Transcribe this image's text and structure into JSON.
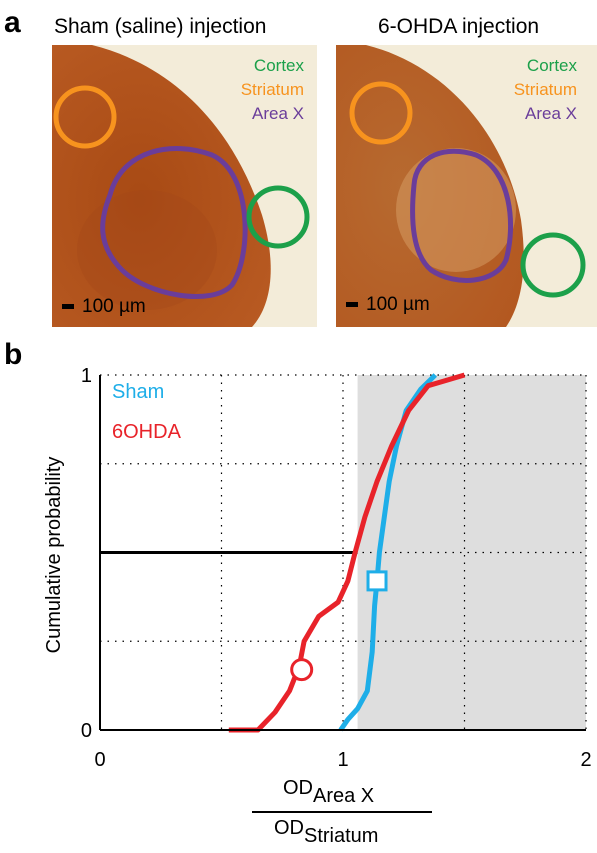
{
  "panel_a": {
    "letter": "a",
    "left": {
      "title": "Sham (saline) injection",
      "labels": {
        "cortex": "Cortex",
        "striatum": "Striatum",
        "area_x": "Area X"
      },
      "scale": "100 µm"
    },
    "right": {
      "title": "6-OHDA injection",
      "labels": {
        "cortex": "Cortex",
        "striatum": "Striatum",
        "area_x": "Area X"
      },
      "scale": "100 µm"
    }
  },
  "panel_b": {
    "letter": "b"
  },
  "colors": {
    "cortex": "#1ca04a",
    "striatum": "#f7931e",
    "area_x": "#6a3d9a",
    "sham": "#1eaee8",
    "sixohda": "#e8232a"
  },
  "chart_data": {
    "type": "line",
    "ylabel": "Cumulative probability",
    "xlabel_numerator": "OD",
    "xlabel_numerator_sub": "Area X",
    "xlabel_denominator": "OD",
    "xlabel_denominator_sub": "Striatum",
    "xlim": [
      0,
      2
    ],
    "ylim": [
      0,
      1
    ],
    "xticks": [
      "0",
      "1",
      "2"
    ],
    "yticks": [
      "0",
      "1"
    ],
    "grid": true,
    "legend_position": "top-left",
    "shaded_region_x": [
      1.06,
      2.0
    ],
    "reference_line": {
      "y": 0.5,
      "x_from": 0,
      "x_to": 1.06
    },
    "series": [
      {
        "name": "Sham",
        "points": [
          [
            0.99,
            0.0
          ],
          [
            1.02,
            0.03
          ],
          [
            1.06,
            0.06
          ],
          [
            1.1,
            0.11
          ],
          [
            1.12,
            0.22
          ],
          [
            1.13,
            0.35
          ],
          [
            1.14,
            0.42
          ],
          [
            1.15,
            0.5
          ],
          [
            1.17,
            0.6
          ],
          [
            1.19,
            0.7
          ],
          [
            1.22,
            0.8
          ],
          [
            1.26,
            0.9
          ],
          [
            1.32,
            0.96
          ],
          [
            1.38,
            1.0
          ]
        ],
        "median_marker": {
          "x": 1.14,
          "y": 0.42,
          "shape": "square"
        }
      },
      {
        "name": "6OHDA",
        "points": [
          [
            0.53,
            0.0
          ],
          [
            0.65,
            0.0
          ],
          [
            0.72,
            0.05
          ],
          [
            0.78,
            0.11
          ],
          [
            0.82,
            0.18
          ],
          [
            0.84,
            0.25
          ],
          [
            0.9,
            0.32
          ],
          [
            0.98,
            0.36
          ],
          [
            1.02,
            0.42
          ],
          [
            1.05,
            0.5
          ],
          [
            1.09,
            0.6
          ],
          [
            1.14,
            0.7
          ],
          [
            1.2,
            0.8
          ],
          [
            1.27,
            0.9
          ],
          [
            1.35,
            0.97
          ],
          [
            1.5,
            1.0
          ]
        ],
        "median_marker": {
          "x": 0.83,
          "y": 0.17,
          "shape": "circle"
        }
      }
    ]
  }
}
